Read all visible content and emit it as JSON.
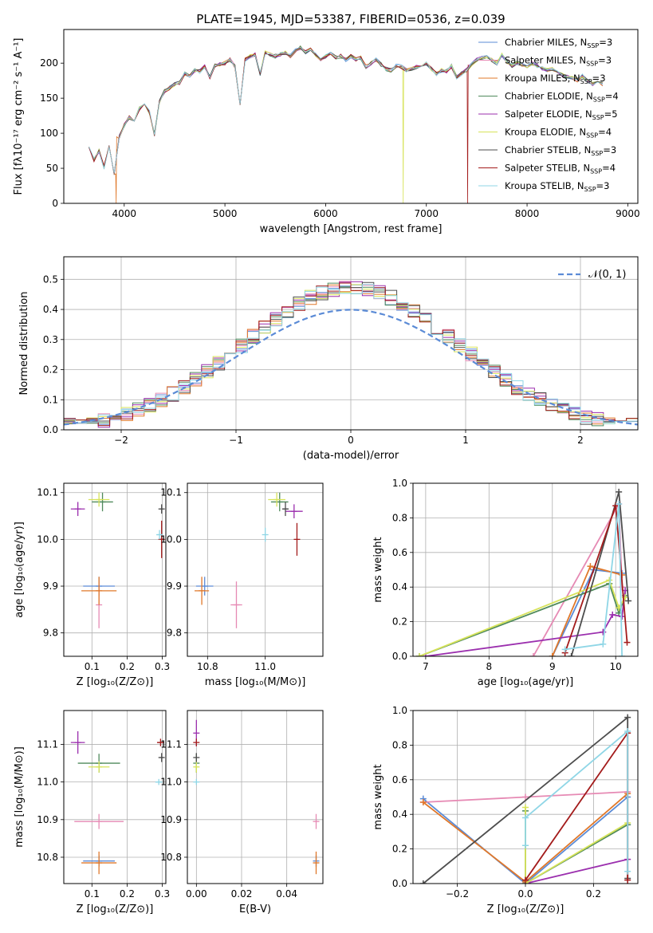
{
  "colors": {
    "Chabrier MILES": "#5b8bd6",
    "Salpeter MILES": "#e68ab4",
    "Kroupa MILES": "#e0782a",
    "Chabrier ELODIE": "#4f8a5b",
    "Salpeter ELODIE": "#9b2fae",
    "Kroupa ELODIE": "#d7e35a",
    "Chabrier STELIB": "#4d4d4d",
    "Salpeter STELIB": "#a31b1b",
    "Kroupa STELIB": "#8fd6e6",
    "normal": "#5b8bd6"
  },
  "chart_data": [
    {
      "id": "spectrum",
      "type": "line",
      "title": "PLATE=1945, MJD=53387, FIBERID=0536, z=0.039",
      "xlabel": "wavelength [Angstrom, rest frame]",
      "ylabel": "Flux [fλ10⁻¹⁷ erg cm⁻² s⁻¹ A⁻¹]",
      "xlim": [
        3400,
        9100
      ],
      "ylim": [
        0,
        248
      ],
      "xticks": [
        "4000",
        "5000",
        "6000",
        "7000",
        "8000",
        "9000"
      ],
      "yticks": [
        "0",
        "50",
        "100",
        "150",
        "200"
      ],
      "legend": "top-right",
      "legend_entries": [
        {
          "name": "Chabrier MILES",
          "nssp": "3"
        },
        {
          "name": "Salpeter MILES",
          "nssp": "3"
        },
        {
          "name": "Kroupa MILES",
          "nssp": "3"
        },
        {
          "name": "Chabrier ELODIE",
          "nssp": "4"
        },
        {
          "name": "Salpeter ELODIE",
          "nssp": "5"
        },
        {
          "name": "Kroupa ELODIE",
          "nssp": "4"
        },
        {
          "name": "Chabrier STELIB",
          "nssp": "3"
        },
        {
          "name": "Salpeter STELIB",
          "nssp": "4"
        },
        {
          "name": "Kroupa STELIB",
          "nssp": "3"
        }
      ],
      "x": [
        3650,
        3700,
        3750,
        3800,
        3850,
        3900,
        3950,
        4000,
        4050,
        4100,
        4150,
        4200,
        4250,
        4300,
        4350,
        4400,
        4450,
        4500,
        4550,
        4600,
        4650,
        4700,
        4750,
        4800,
        4850,
        4900,
        4950,
        5000,
        5050,
        5100,
        5150,
        5200,
        5250,
        5300,
        5350,
        5400,
        5450,
        5500,
        5550,
        5600,
        5650,
        5700,
        5750,
        5800,
        5850,
        5900,
        5950,
        6000,
        6050,
        6100,
        6150,
        6200,
        6250,
        6300,
        6350,
        6400,
        6450,
        6500,
        6550,
        6600,
        6650,
        6700,
        6750,
        6800,
        6850,
        6900,
        6950,
        7000,
        7050,
        7100,
        7150,
        7200,
        7250,
        7300,
        7350,
        7400,
        7450,
        7500,
        7550,
        7600,
        7650,
        7700,
        7750,
        7800,
        7850,
        7900,
        7950,
        8000,
        8050,
        8100,
        8150,
        8200,
        8250,
        8300,
        8350,
        8400,
        8450,
        8500,
        8550,
        8600,
        8650,
        8700,
        8750
      ],
      "y": [
        80,
        62,
        75,
        52,
        82,
        42,
        95,
        112,
        122,
        118,
        135,
        140,
        130,
        98,
        145,
        160,
        165,
        170,
        172,
        185,
        182,
        190,
        188,
        195,
        180,
        196,
        198,
        200,
        205,
        195,
        140,
        205,
        210,
        212,
        185,
        215,
        212,
        210,
        212,
        215,
        210,
        218,
        222,
        215,
        220,
        212,
        205,
        210,
        215,
        208,
        210,
        205,
        210,
        205,
        208,
        195,
        200,
        205,
        198,
        192,
        190,
        196,
        195,
        190,
        192,
        195,
        196,
        200,
        192,
        185,
        190,
        188,
        196,
        180,
        185,
        190,
        198,
        205,
        208,
        210,
        205,
        200,
        212,
        202,
        196,
        200,
        198,
        195,
        200,
        196,
        193,
        190,
        192,
        188,
        183,
        180,
        178,
        176,
        182,
        175,
        170,
        172,
        170
      ],
      "dropouts": [
        {
          "series": "Kroupa MILES",
          "x": 3920,
          "min": 0
        },
        {
          "series": "Kroupa ELODIE",
          "x": 6770,
          "min": 0
        },
        {
          "series": "Salpeter STELIB",
          "x": 7410,
          "min": 0
        }
      ]
    },
    {
      "id": "residuals",
      "type": "histogram",
      "xlabel": "(data-model)/error",
      "ylabel": "Normed distribution",
      "xlim": [
        -2.5,
        2.5
      ],
      "ylim": [
        0,
        0.575
      ],
      "xticks": [
        "−2",
        "−1",
        "0",
        "1",
        "2"
      ],
      "yticks": [
        "0.0",
        "0.1",
        "0.2",
        "0.3",
        "0.4",
        "0.5"
      ],
      "grid": true,
      "legend": "top-right",
      "normal_label": "𝒩(0, 1)",
      "bin_width": 0.1,
      "bin_start": -2.5
    },
    {
      "id": "age_vs_Z",
      "type": "scatter",
      "xlabel": "Z [log₁₀(Z/Z⊙)]",
      "ylabel": "age  [log₁₀(age/yr)]",
      "xlim": [
        0.02,
        0.31
      ],
      "ylim": [
        9.75,
        10.12
      ],
      "xticks": [
        "0.1",
        "0.2",
        "0.3"
      ],
      "yticks": [
        "9.8",
        "9.9",
        "10.0",
        "10.1"
      ],
      "grid": true,
      "points": [
        {
          "series": "Chabrier MILES",
          "x": 0.12,
          "y": 9.9,
          "xerr": 0.045,
          "yerr": 0.02
        },
        {
          "series": "Salpeter MILES",
          "x": 0.12,
          "y": 9.86,
          "xerr": 0.0,
          "yerr": 0.05
        },
        {
          "series": "Kroupa MILES",
          "x": 0.12,
          "y": 9.89,
          "xerr": 0.05,
          "yerr": 0.03
        },
        {
          "series": "Chabrier ELODIE",
          "x": 0.13,
          "y": 10.08,
          "xerr": 0.03,
          "yerr": 0.02
        },
        {
          "series": "Salpeter ELODIE",
          "x": 0.06,
          "y": 10.065,
          "xerr": 0.02,
          "yerr": 0.015
        },
        {
          "series": "Kroupa ELODIE",
          "x": 0.12,
          "y": 10.085,
          "xerr": 0.03,
          "yerr": 0.015
        },
        {
          "series": "Chabrier STELIB",
          "x": 0.298,
          "y": 10.065,
          "xerr": 0.004,
          "yerr": 0.01
        },
        {
          "series": "Salpeter STELIB",
          "x": 0.298,
          "y": 10.0,
          "xerr": 0.005,
          "yerr": 0.04
        },
        {
          "series": "Kroupa STELIB",
          "x": 0.292,
          "y": 10.01,
          "xerr": 0.008,
          "yerr": 0.01
        }
      ]
    },
    {
      "id": "age_vs_mass",
      "type": "scatter",
      "xlabel": "mass [log₁₀(M/M⊙)]",
      "xlim": [
        10.73,
        11.2
      ],
      "ylim": [
        9.75,
        10.12
      ],
      "xticks": [
        "10.8",
        "11.0"
      ],
      "yticks": [
        "9.8",
        "9.9",
        "10.0",
        "10.1"
      ],
      "grid": true,
      "points": [
        {
          "series": "Chabrier MILES",
          "x": 10.79,
          "y": 9.9,
          "xerr": 0.03,
          "yerr": 0.02
        },
        {
          "series": "Salpeter MILES",
          "x": 10.9,
          "y": 9.86,
          "xerr": 0.02,
          "yerr": 0.05
        },
        {
          "series": "Kroupa MILES",
          "x": 10.78,
          "y": 9.89,
          "xerr": 0.025,
          "yerr": 0.03
        },
        {
          "series": "Chabrier ELODIE",
          "x": 11.05,
          "y": 10.08,
          "xerr": 0.03,
          "yerr": 0.02
        },
        {
          "series": "Salpeter ELODIE",
          "x": 11.1,
          "y": 10.06,
          "xerr": 0.03,
          "yerr": 0.015
        },
        {
          "series": "Kroupa ELODIE",
          "x": 11.04,
          "y": 10.085,
          "xerr": 0.03,
          "yerr": 0.015
        },
        {
          "series": "Chabrier STELIB",
          "x": 11.07,
          "y": 10.065,
          "xerr": 0.01,
          "yerr": 0.015
        },
        {
          "series": "Salpeter STELIB",
          "x": 11.11,
          "y": 10.0,
          "xerr": 0.0,
          "yerr": 0.035
        },
        {
          "series": "Kroupa STELIB",
          "x": 11.0,
          "y": 10.01,
          "xerr": 0.0,
          "yerr": 0.015
        }
      ]
    },
    {
      "id": "weight_vs_age",
      "type": "line",
      "xlabel": "age  [log₁₀(age/yr)]",
      "ylabel": "mass weight",
      "xlim": [
        6.8,
        10.35
      ],
      "ylim": [
        0,
        1
      ],
      "xticks": [
        "7",
        "8",
        "9",
        "10"
      ],
      "yticks": [
        "0.0",
        "0.2",
        "0.4",
        "0.6",
        "0.8",
        "1.0"
      ],
      "grid": true,
      "lines": [
        {
          "series": "Chabrier MILES",
          "points": [
            [
              9.0,
              0.0
            ],
            [
              9.65,
              0.5
            ],
            [
              10.1,
              0.48
            ]
          ]
        },
        {
          "series": "Salpeter MILES",
          "points": [
            [
              8.7,
              0.0
            ],
            [
              10.05,
              0.88
            ],
            [
              10.1,
              0.4
            ]
          ]
        },
        {
          "series": "Kroupa MILES",
          "points": [
            [
              9.0,
              0.0
            ],
            [
              9.6,
              0.52
            ],
            [
              10.1,
              0.47
            ]
          ]
        },
        {
          "series": "Chabrier ELODIE",
          "points": [
            [
              6.9,
              0.0
            ],
            [
              9.9,
              0.42
            ],
            [
              10.05,
              0.25
            ],
            [
              10.15,
              0.35
            ]
          ]
        },
        {
          "series": "Salpeter ELODIE",
          "points": [
            [
              7.0,
              0.0
            ],
            [
              9.8,
              0.14
            ],
            [
              9.95,
              0.24
            ],
            [
              10.1,
              0.23
            ],
            [
              10.15,
              0.38
            ]
          ]
        },
        {
          "series": "Kroupa ELODIE",
          "points": [
            [
              6.9,
              0.0
            ],
            [
              9.9,
              0.44
            ],
            [
              10.05,
              0.28
            ],
            [
              10.15,
              0.34
            ]
          ]
        },
        {
          "series": "Chabrier STELIB",
          "points": [
            [
              9.3,
              0.0
            ],
            [
              10.05,
              0.95
            ],
            [
              10.2,
              0.32
            ]
          ]
        },
        {
          "series": "Salpeter STELIB",
          "points": [
            [
              9.2,
              0.02
            ],
            [
              10.0,
              0.87
            ],
            [
              10.18,
              0.08
            ]
          ]
        },
        {
          "series": "Kroupa STELIB",
          "points": [
            [
              9.2,
              0.04
            ],
            [
              9.8,
              0.07
            ],
            [
              10.05,
              0.88
            ],
            [
              10.1,
              0.0
            ]
          ]
        }
      ]
    },
    {
      "id": "mass_vs_Z",
      "type": "scatter",
      "xlabel": "Z [log₁₀(Z/Z⊙)]",
      "ylabel": "mass [log₁₀(M/M⊙)]",
      "xlim": [
        0.02,
        0.31
      ],
      "ylim": [
        10.73,
        11.19
      ],
      "xticks": [
        "0.1",
        "0.2",
        "0.3"
      ],
      "yticks": [
        "10.8",
        "10.9",
        "11.0",
        "11.1"
      ],
      "grid": true,
      "points": [
        {
          "series": "Chabrier MILES",
          "x": 0.12,
          "y": 10.79,
          "xerr": 0.045,
          "yerr": 0.015
        },
        {
          "series": "Salpeter MILES",
          "x": 0.12,
          "y": 10.895,
          "xerr": 0.07,
          "yerr": 0.02
        },
        {
          "series": "Kroupa MILES",
          "x": 0.12,
          "y": 10.785,
          "xerr": 0.05,
          "yerr": 0.03
        },
        {
          "series": "Chabrier ELODIE",
          "x": 0.12,
          "y": 11.05,
          "xerr": 0.06,
          "yerr": 0.025
        },
        {
          "series": "Salpeter ELODIE",
          "x": 0.06,
          "y": 11.105,
          "xerr": 0.02,
          "yerr": 0.03
        },
        {
          "series": "Kroupa ELODIE",
          "x": 0.12,
          "y": 11.04,
          "xerr": 0.03,
          "yerr": 0.015
        },
        {
          "series": "Chabrier STELIB",
          "x": 0.298,
          "y": 11.065,
          "xerr": 0.005,
          "yerr": 0.012
        },
        {
          "series": "Salpeter STELIB",
          "x": 0.295,
          "y": 11.105,
          "xerr": 0.01,
          "yerr": 0.01
        },
        {
          "series": "Kroupa STELIB",
          "x": 0.29,
          "y": 11.0,
          "xerr": 0.01,
          "yerr": 0.008
        }
      ]
    },
    {
      "id": "mass_vs_ebv",
      "type": "scatter",
      "xlabel": "E(B-V)",
      "xlim": [
        -0.004,
        0.056
      ],
      "ylim": [
        10.73,
        11.19
      ],
      "xticks": [
        "0.00",
        "0.02",
        "0.04"
      ],
      "yticks": [
        "10.8",
        "10.9",
        "11.0",
        "11.1"
      ],
      "grid": true,
      "points": [
        {
          "series": "Chabrier MILES",
          "x": 0.053,
          "y": 10.79,
          "xerr": 0.0,
          "yerr": 0.015
        },
        {
          "series": "Salpeter MILES",
          "x": 0.053,
          "y": 10.895,
          "xerr": 0.0,
          "yerr": 0.02
        },
        {
          "series": "Kroupa MILES",
          "x": 0.053,
          "y": 10.785,
          "xerr": 0.0,
          "yerr": 0.03
        },
        {
          "series": "Chabrier ELODIE",
          "x": 0.0,
          "y": 11.05,
          "xerr": 0.0,
          "yerr": 0.025
        },
        {
          "series": "Salpeter ELODIE",
          "x": 0.0,
          "y": 11.13,
          "xerr": 0.0,
          "yerr": 0.035
        },
        {
          "series": "Kroupa ELODIE",
          "x": 0.0,
          "y": 11.04,
          "xerr": 0.0,
          "yerr": 0.015
        },
        {
          "series": "Chabrier STELIB",
          "x": 0.0,
          "y": 11.065,
          "xerr": 0.0,
          "yerr": 0.012
        },
        {
          "series": "Salpeter STELIB",
          "x": 0.0,
          "y": 11.105,
          "xerr": 0.0,
          "yerr": 0.01
        },
        {
          "series": "Kroupa STELIB",
          "x": 0.0,
          "y": 11.0,
          "xerr": 0.0,
          "yerr": 0.008
        }
      ]
    },
    {
      "id": "weight_vs_Z",
      "type": "line",
      "xlabel": "Z [log₁₀(Z/Z⊙)]",
      "ylabel": "mass weight",
      "xlim": [
        -0.33,
        0.33
      ],
      "ylim": [
        0,
        1
      ],
      "xticks": [
        "−0.2",
        "0.0",
        "0.2"
      ],
      "yticks": [
        "0.0",
        "0.2",
        "0.4",
        "0.6",
        "0.8",
        "1.0"
      ],
      "grid": true,
      "lines": [
        {
          "series": "Chabrier MILES",
          "points": [
            [
              -0.3,
              0.49
            ],
            [
              0.0,
              0.0
            ],
            [
              0.3,
              0.5
            ]
          ]
        },
        {
          "series": "Salpeter MILES",
          "points": [
            [
              -0.3,
              0.47
            ],
            [
              0.0,
              0.5
            ],
            [
              0.3,
              0.53
            ]
          ]
        },
        {
          "series": "Kroupa MILES",
          "points": [
            [
              -0.3,
              0.47
            ],
            [
              0.0,
              0.01
            ],
            [
              0.3,
              0.52
            ]
          ]
        },
        {
          "series": "Chabrier ELODIE",
          "points": [
            [
              0.0,
              0.42
            ],
            [
              0.0,
              0.0
            ],
            [
              0.3,
              0.34
            ]
          ]
        },
        {
          "series": "Salpeter ELODIE",
          "points": [
            [
              0.0,
              0.0
            ],
            [
              0.3,
              0.14
            ]
          ]
        },
        {
          "series": "Kroupa ELODIE",
          "points": [
            [
              0.0,
              0.44
            ],
            [
              0.0,
              0.0
            ],
            [
              0.3,
              0.35
            ]
          ]
        },
        {
          "series": "Chabrier STELIB",
          "points": [
            [
              -0.3,
              0.0
            ],
            [
              0.3,
              0.96
            ],
            [
              0.3,
              0.03
            ]
          ]
        },
        {
          "series": "Salpeter STELIB",
          "points": [
            [
              0.0,
              0.02
            ],
            [
              0.3,
              0.87
            ],
            [
              0.3,
              0.02
            ]
          ]
        },
        {
          "series": "Kroupa STELIB",
          "points": [
            [
              0.0,
              0.22
            ],
            [
              0.0,
              0.38
            ],
            [
              0.3,
              0.88
            ],
            [
              0.3,
              0.07
            ]
          ]
        }
      ]
    }
  ]
}
